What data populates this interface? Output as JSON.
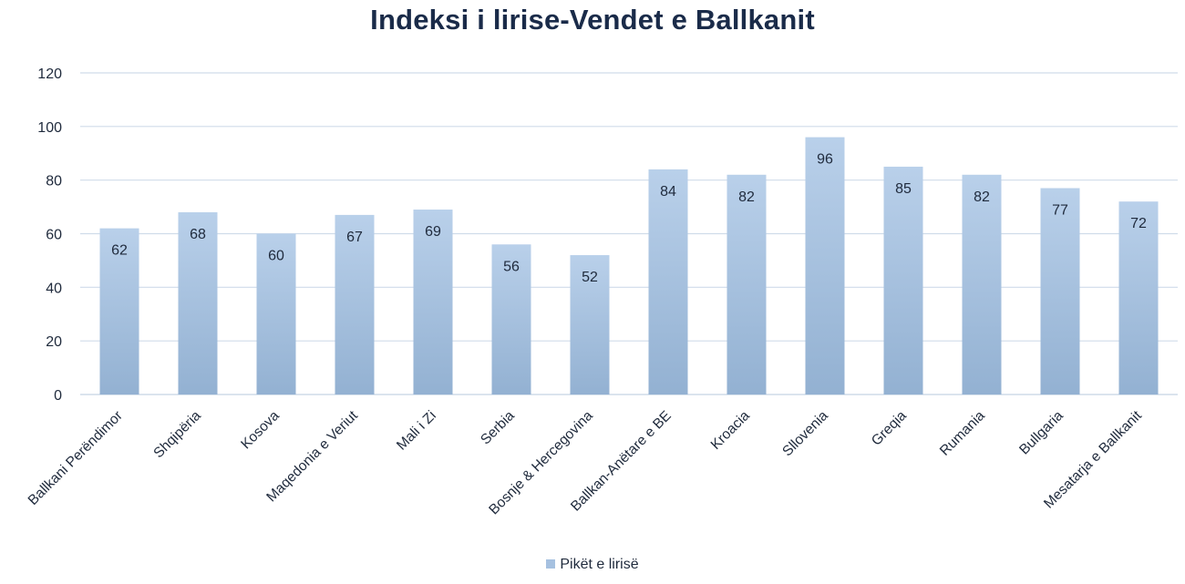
{
  "chart_data": {
    "type": "bar",
    "title": "Indeksi i lirise-Vendet e Ballkanit",
    "categories": [
      "Ballkani Perëndimor",
      "Shqipëria",
      "Kosova",
      "Maqedonia e Veriut",
      "Mali i Zi",
      "Serbia",
      "Bosnje & Hercegovina",
      "Ballkan-Anëtare e BE",
      "Kroacia",
      "Sllovenia",
      "Greqia",
      "Rumania",
      "Bullgaria",
      "Mesatarja e Ballkanit"
    ],
    "series": [
      {
        "name": "Pikët e lirisë",
        "values": [
          62,
          68,
          60,
          67,
          69,
          56,
          52,
          84,
          82,
          96,
          85,
          82,
          77,
          72
        ]
      }
    ],
    "ylim": [
      0,
      120
    ],
    "yticks": [
      0,
      20,
      40,
      60,
      80,
      100,
      120
    ],
    "grid": true,
    "legend_position": "bottom",
    "data_labels": true,
    "colors": {
      "bar_top": "#b9d0ea",
      "bar_bottom": "#93b1d2",
      "grid": "#d0dcea",
      "axis": "#c5d3e3",
      "title": "#1a2b49",
      "swatch": "#a6c1e0"
    }
  }
}
